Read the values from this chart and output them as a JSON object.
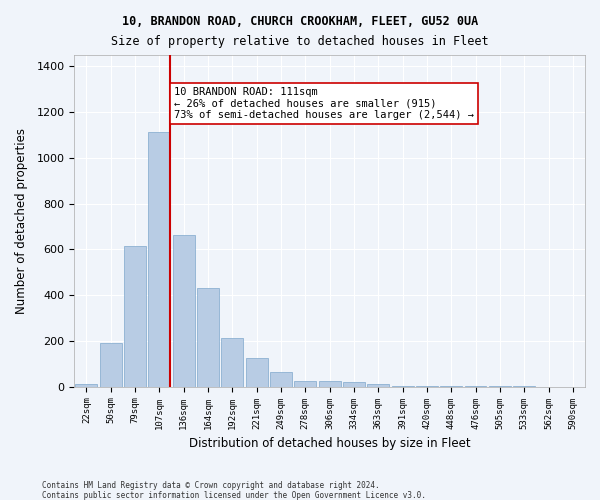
{
  "title1": "10, BRANDON ROAD, CHURCH CROOKHAM, FLEET, GU52 0UA",
  "title2": "Size of property relative to detached houses in Fleet",
  "xlabel": "Distribution of detached houses by size in Fleet",
  "ylabel": "Number of detached properties",
  "bar_labels": [
    "22sqm",
    "50sqm",
    "79sqm",
    "107sqm",
    "136sqm",
    "164sqm",
    "192sqm",
    "221sqm",
    "249sqm",
    "278sqm",
    "306sqm",
    "334sqm",
    "363sqm",
    "391sqm",
    "420sqm",
    "448sqm",
    "476sqm",
    "505sqm",
    "533sqm",
    "562sqm",
    "590sqm"
  ],
  "bar_values": [
    10,
    190,
    615,
    1115,
    665,
    430,
    215,
    125,
    65,
    25,
    25,
    20,
    10,
    5,
    3,
    2,
    1,
    1,
    1,
    0,
    0
  ],
  "bar_color": "#b8cce4",
  "bar_edge_color": "#7fa8cc",
  "ylim": [
    0,
    1450
  ],
  "yticks": [
    0,
    200,
    400,
    600,
    800,
    1000,
    1200,
    1400
  ],
  "property_line_x": 3.5,
  "property_line_color": "#cc0000",
  "annotation_text": "10 BRANDON ROAD: 111sqm\n← 26% of detached houses are smaller (915)\n73% of semi-detached houses are larger (2,544) →",
  "annotation_box_color": "#ffffff",
  "annotation_box_edge": "#cc0000",
  "footnote1": "Contains HM Land Registry data © Crown copyright and database right 2024.",
  "footnote2": "Contains public sector information licensed under the Open Government Licence v3.0.",
  "background_color": "#f0f4fa",
  "grid_color": "#ffffff"
}
